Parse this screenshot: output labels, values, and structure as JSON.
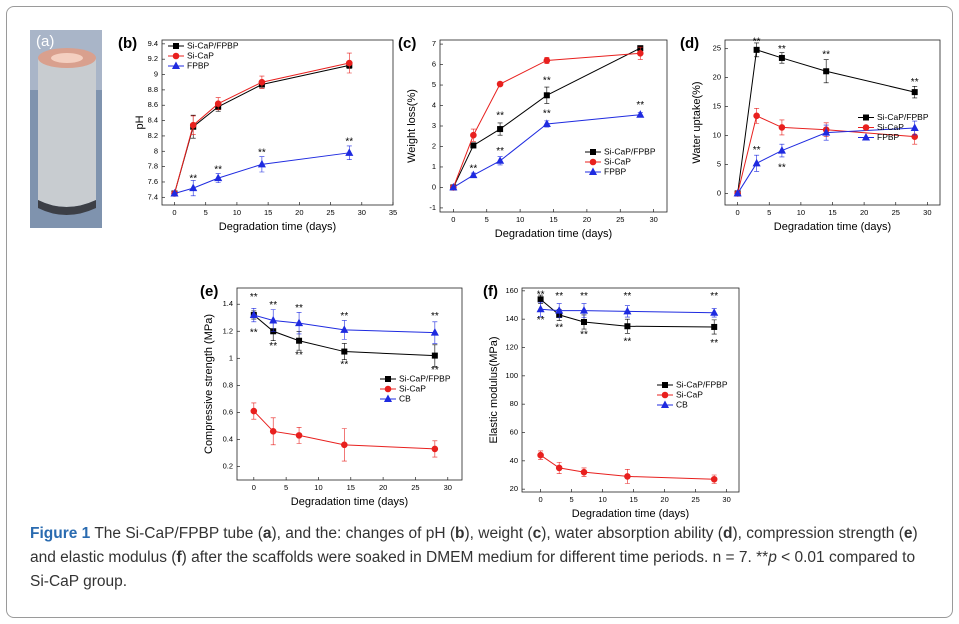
{
  "photo_label": "(a)",
  "chart_data": [
    {
      "type": "line",
      "panel": "(b)",
      "xlabel": "Degradation time (days)",
      "ylabel": "pH",
      "x": [
        0,
        3,
        7,
        14,
        28
      ],
      "xlim": [
        -2,
        35
      ],
      "ylim": [
        7.3,
        9.45
      ],
      "xticks": [
        0,
        5,
        10,
        15,
        20,
        25,
        30,
        35
      ],
      "yticks": [
        7.4,
        7.6,
        7.8,
        8.0,
        8.2,
        8.4,
        8.6,
        8.8,
        9.0,
        9.2,
        9.4
      ],
      "legend": "upper left",
      "series": [
        {
          "name": "Si-CaP/FPBP",
          "color": "#000000",
          "marker": "square",
          "values": [
            7.45,
            8.32,
            8.58,
            8.87,
            9.12
          ],
          "errors": [
            0,
            0.15,
            0.06,
            0.05,
            0.04
          ]
        },
        {
          "name": "Si-CaP",
          "color": "#e8201e",
          "marker": "circle",
          "values": [
            7.45,
            8.34,
            8.62,
            8.9,
            9.15
          ],
          "errors": [
            0,
            0.12,
            0.08,
            0.08,
            0.13
          ]
        },
        {
          "name": "FPBP",
          "color": "#1f2be0",
          "marker": "triangle",
          "values": [
            7.45,
            7.52,
            7.65,
            7.83,
            7.98
          ],
          "errors": [
            0,
            0.1,
            0.06,
            0.1,
            0.09
          ]
        }
      ],
      "annotations": [
        {
          "text": "**",
          "x": 3,
          "y": 7.64
        },
        {
          "text": "**",
          "x": 7,
          "y": 7.76
        },
        {
          "text": "**",
          "x": 14,
          "y": 7.98
        },
        {
          "text": "**",
          "x": 28,
          "y": 8.12
        }
      ]
    },
    {
      "type": "line",
      "panel": "(c)",
      "xlabel": "Degradation time (days)",
      "ylabel": "Weight loss(%)",
      "x": [
        0,
        3,
        7,
        14,
        28
      ],
      "xlim": [
        -2,
        32
      ],
      "ylim": [
        -1.2,
        7.2
      ],
      "xticks": [
        0,
        5,
        10,
        15,
        20,
        25,
        30
      ],
      "yticks": [
        -1,
        0,
        1,
        2,
        3,
        4,
        5,
        6,
        7
      ],
      "legend": "lower right",
      "series": [
        {
          "name": "Si-CaP/FPBP",
          "color": "#000000",
          "marker": "square",
          "values": [
            0,
            2.05,
            2.85,
            4.5,
            6.8
          ],
          "errors": [
            0,
            0.1,
            0.3,
            0.4,
            0.1
          ]
        },
        {
          "name": "Si-CaP",
          "color": "#e8201e",
          "marker": "circle",
          "values": [
            0,
            2.55,
            5.05,
            6.2,
            6.55
          ],
          "errors": [
            0,
            0.3,
            0.1,
            0.15,
            0.3
          ]
        },
        {
          "name": "FPBP",
          "color": "#1f2be0",
          "marker": "triangle",
          "values": [
            0,
            0.6,
            1.3,
            3.1,
            3.55
          ],
          "errors": [
            0,
            0.1,
            0.2,
            0.15,
            0.1
          ]
        }
      ],
      "annotations": [
        {
          "text": "**",
          "x": 7,
          "y": 3.5
        },
        {
          "text": "**",
          "x": 14,
          "y": 5.2
        },
        {
          "text": "**",
          "x": 3,
          "y": 0.9
        },
        {
          "text": "**",
          "x": 7,
          "y": 1.75
        },
        {
          "text": "**",
          "x": 14,
          "y": 3.6
        },
        {
          "text": "**",
          "x": 28,
          "y": 4.0
        }
      ]
    },
    {
      "type": "line",
      "panel": "(d)",
      "xlabel": "Degradation time (days)",
      "ylabel": "Water uptake(%)",
      "x": [
        0,
        3,
        7,
        14,
        28
      ],
      "xlim": [
        -2,
        32
      ],
      "ylim": [
        -2,
        26.5
      ],
      "xticks": [
        0,
        5,
        10,
        15,
        20,
        25,
        30
      ],
      "yticks": [
        0,
        5,
        10,
        15,
        20,
        25
      ],
      "legend": "center right",
      "series": [
        {
          "name": "Si-CaP/FPBP",
          "color": "#000000",
          "marker": "square",
          "values": [
            0,
            24.8,
            23.4,
            21.1,
            17.5
          ],
          "errors": [
            0,
            1.2,
            0.9,
            2.0,
            1.0
          ]
        },
        {
          "name": "Si-CaP",
          "color": "#e8201e",
          "marker": "circle",
          "values": [
            0,
            13.4,
            11.4,
            11.0,
            9.8
          ],
          "errors": [
            0,
            1.3,
            1.3,
            1.2,
            1.3
          ]
        },
        {
          "name": "FPBP",
          "color": "#1f2be0",
          "marker": "triangle",
          "values": [
            0,
            5.2,
            7.4,
            10.5,
            11.3
          ],
          "errors": [
            0,
            1.4,
            1.1,
            1.3,
            1.2
          ]
        }
      ],
      "annotations": [
        {
          "text": "**",
          "x": 3,
          "y": 26.2
        },
        {
          "text": "**",
          "x": 7,
          "y": 24.9
        },
        {
          "text": "**",
          "x": 14,
          "y": 23.9
        },
        {
          "text": "**",
          "x": 28,
          "y": 19.2
        },
        {
          "text": "**",
          "x": 3,
          "y": 7.4
        },
        {
          "text": "**",
          "x": 7,
          "y": 4.4
        }
      ]
    },
    {
      "type": "line",
      "panel": "(e)",
      "xlabel": "Degradation time (days)",
      "ylabel": "Compressive strength (MPa)",
      "x": [
        0,
        3,
        7,
        14,
        28
      ],
      "xlim": [
        -2.6,
        32.2
      ],
      "ylim": [
        0.1,
        1.52
      ],
      "xticks": [
        0,
        5,
        10,
        15,
        20,
        25,
        30
      ],
      "yticks": [
        0.2,
        0.4,
        0.6,
        0.8,
        1.0,
        1.2,
        1.4
      ],
      "legend": "center right",
      "series": [
        {
          "name": "Si-CaP/FPBP",
          "color": "#000000",
          "marker": "square",
          "values": [
            1.32,
            1.2,
            1.13,
            1.05,
            1.02
          ],
          "errors": [
            0.03,
            0.07,
            0.07,
            0.06,
            0.08
          ]
        },
        {
          "name": "Si-CaP",
          "color": "#e8201e",
          "marker": "circle",
          "values": [
            0.61,
            0.46,
            0.43,
            0.36,
            0.33
          ],
          "errors": [
            0.06,
            0.1,
            0.06,
            0.12,
            0.06
          ]
        },
        {
          "name": "CB",
          "color": "#1f2be0",
          "marker": "triangle",
          "values": [
            1.32,
            1.28,
            1.26,
            1.21,
            1.19
          ],
          "errors": [
            0.05,
            0.08,
            0.08,
            0.07,
            0.08
          ]
        }
      ],
      "annotations": [
        {
          "text": "**",
          "x": 0,
          "y": 1.45
        },
        {
          "text": "**",
          "x": 3,
          "y": 1.39
        },
        {
          "text": "**",
          "x": 7,
          "y": 1.37
        },
        {
          "text": "**",
          "x": 14,
          "y": 1.31
        },
        {
          "text": "**",
          "x": 28,
          "y": 1.31
        },
        {
          "text": "**",
          "x": 0,
          "y": 1.19
        },
        {
          "text": "**",
          "x": 3,
          "y": 1.09
        },
        {
          "text": "**",
          "x": 7,
          "y": 1.02
        },
        {
          "text": "**",
          "x": 14,
          "y": 0.95
        },
        {
          "text": "**",
          "x": 28,
          "y": 0.91
        }
      ]
    },
    {
      "type": "line",
      "panel": "(f)",
      "xlabel": "Degradation time (days)",
      "ylabel": "Elastic modulus(MPa)",
      "x": [
        0,
        3,
        7,
        14,
        28
      ],
      "xlim": [
        -3,
        32
      ],
      "ylim": [
        18,
        162
      ],
      "xticks": [
        0,
        5,
        10,
        15,
        20,
        25,
        30
      ],
      "yticks": [
        20,
        40,
        60,
        80,
        100,
        120,
        140,
        160
      ],
      "legend": "center right",
      "series": [
        {
          "name": "Si-CaP/FPBP",
          "color": "#000000",
          "marker": "square",
          "values": [
            154,
            143,
            138,
            135,
            134.5
          ],
          "errors": [
            3,
            4,
            5,
            5,
            5
          ]
        },
        {
          "name": "Si-CaP",
          "color": "#e8201e",
          "marker": "circle",
          "values": [
            44,
            35,
            32,
            29,
            27
          ],
          "errors": [
            3,
            4,
            3,
            5,
            3
          ]
        },
        {
          "name": "CB",
          "color": "#1f2be0",
          "marker": "triangle",
          "values": [
            147,
            146,
            146,
            145.5,
            144.5
          ],
          "errors": [
            5,
            5,
            5,
            4,
            3
          ]
        }
      ],
      "annotations": [
        {
          "text": "**",
          "x": 0,
          "y": 157
        },
        {
          "text": "**",
          "x": 3,
          "y": 156
        },
        {
          "text": "**",
          "x": 7,
          "y": 156
        },
        {
          "text": "**",
          "x": 14,
          "y": 156
        },
        {
          "text": "**",
          "x": 28,
          "y": 156
        },
        {
          "text": "**",
          "x": 0,
          "y": 139
        },
        {
          "text": "**",
          "x": 3,
          "y": 134
        },
        {
          "text": "**",
          "x": 7,
          "y": 129
        },
        {
          "text": "**",
          "x": 14,
          "y": 124
        },
        {
          "text": "**",
          "x": 28,
          "y": 123
        }
      ]
    }
  ],
  "caption": {
    "label": "Figure 1",
    "segments": [
      {
        "text": " The Si-CaP/FPBP tube ("
      },
      {
        "text": "a",
        "style": "bold"
      },
      {
        "text": "), and the: changes of pH ("
      },
      {
        "text": "b",
        "style": "bold"
      },
      {
        "text": "), weight ("
      },
      {
        "text": "c",
        "style": "bold"
      },
      {
        "text": "), water absorption ability ("
      },
      {
        "text": "d",
        "style": "bold"
      },
      {
        "text": "), compression strength ("
      },
      {
        "text": "e",
        "style": "bold"
      },
      {
        "text": ") and elastic modulus ("
      },
      {
        "text": "f",
        "style": "bold"
      },
      {
        "text": ") after the scaffolds were soaked in DMEM medium for different time periods. n = 7. **"
      },
      {
        "text": "p",
        "style": "italic"
      },
      {
        "text": " < 0.01 compared to Si-CaP group."
      }
    ]
  }
}
